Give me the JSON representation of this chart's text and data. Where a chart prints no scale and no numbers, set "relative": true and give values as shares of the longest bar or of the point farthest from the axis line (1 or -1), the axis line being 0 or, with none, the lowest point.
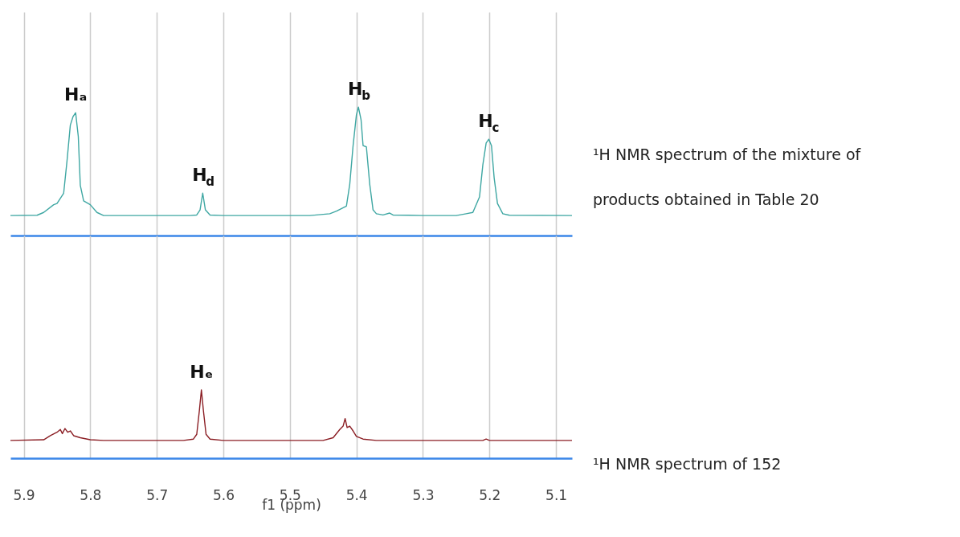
{
  "chart_data": [
    {
      "type": "line",
      "relative": true,
      "xlim": [
        5.92,
        5.076
      ],
      "xticks": [
        5.9,
        5.8,
        5.7,
        5.6,
        5.5,
        5.4,
        5.3,
        5.2,
        5.1
      ],
      "grid": "x",
      "tick_labels": false,
      "x": [
        5.92,
        5.88,
        5.87,
        5.855,
        5.85,
        5.84,
        5.835,
        5.83,
        5.826,
        5.822,
        5.818,
        5.815,
        5.81,
        5.8,
        5.79,
        5.78,
        5.65,
        5.64,
        5.635,
        5.631,
        5.627,
        5.62,
        5.6,
        5.47,
        5.44,
        5.43,
        5.415,
        5.41,
        5.405,
        5.4,
        5.397,
        5.393,
        5.39,
        5.385,
        5.38,
        5.375,
        5.37,
        5.36,
        5.35,
        5.345,
        5.3,
        5.25,
        5.235,
        5.225,
        5.215,
        5.21,
        5.205,
        5.201,
        5.197,
        5.193,
        5.188,
        5.18,
        5.17,
        5.076
      ],
      "series": [
        {
          "color": "#3fa7a3",
          "values": [
            0.156,
            0.158,
            0.18,
            0.24,
            0.25,
            0.33,
            0.58,
            0.86,
            0.925,
            0.956,
            0.77,
            0.39,
            0.27,
            0.24,
            0.18,
            0.156,
            0.156,
            0.16,
            0.2,
            0.33,
            0.2,
            0.16,
            0.156,
            0.156,
            0.17,
            0.19,
            0.23,
            0.4,
            0.7,
            0.94,
            1.0,
            0.9,
            0.7,
            0.69,
            0.4,
            0.2,
            0.17,
            0.16,
            0.175,
            0.16,
            0.156,
            0.156,
            0.17,
            0.18,
            0.3,
            0.55,
            0.72,
            0.75,
            0.7,
            0.45,
            0.25,
            0.17,
            0.158,
            0.156
          ]
        }
      ],
      "annotations": [
        {
          "text": "Hₐ",
          "x": 5.822,
          "y": 0.956
        },
        {
          "text": "H$_{b}$",
          "x": 5.397,
          "y": 1.0
        },
        {
          "text": "H$_{c}$",
          "x": 5.201,
          "y": 0.75
        },
        {
          "text": "H$_{d}$",
          "x": 5.631,
          "y": 0.33
        },
        "¹H NMR spectrum of the mixture of products obtained in Table 20"
      ]
    },
    {
      "type": "line",
      "relative": true,
      "xlim": [
        5.92,
        5.076
      ],
      "xticks": [
        5.9,
        5.8,
        5.7,
        5.6,
        5.5,
        5.4,
        5.3,
        5.2,
        5.1
      ],
      "grid": "x",
      "tick_labels": "x",
      "xlabel": "f1 (ppm)",
      "x": [
        5.92,
        5.87,
        5.86,
        5.85,
        5.845,
        5.842,
        5.838,
        5.834,
        5.83,
        5.825,
        5.815,
        5.8,
        5.78,
        5.66,
        5.645,
        5.64,
        5.636,
        5.633,
        5.63,
        5.626,
        5.62,
        5.6,
        5.45,
        5.435,
        5.425,
        5.42,
        5.417,
        5.414,
        5.41,
        5.405,
        5.4,
        5.39,
        5.37,
        5.21,
        5.205,
        5.2,
        5.076
      ],
      "series": [
        {
          "color": "#8b1e24",
          "values": [
            0.26,
            0.27,
            0.33,
            0.38,
            0.42,
            0.36,
            0.435,
            0.38,
            0.4,
            0.33,
            0.3,
            0.27,
            0.26,
            0.26,
            0.28,
            0.35,
            0.7,
            1.0,
            0.7,
            0.35,
            0.28,
            0.26,
            0.26,
            0.3,
            0.42,
            0.47,
            0.58,
            0.45,
            0.47,
            0.4,
            0.32,
            0.28,
            0.26,
            0.26,
            0.28,
            0.26,
            0.26
          ]
        }
      ],
      "annotations": [
        {
          "text": "Hₑ",
          "x": 5.633,
          "y": 1.0
        },
        "¹H NMR spectrum of 152"
      ]
    }
  ]
}
